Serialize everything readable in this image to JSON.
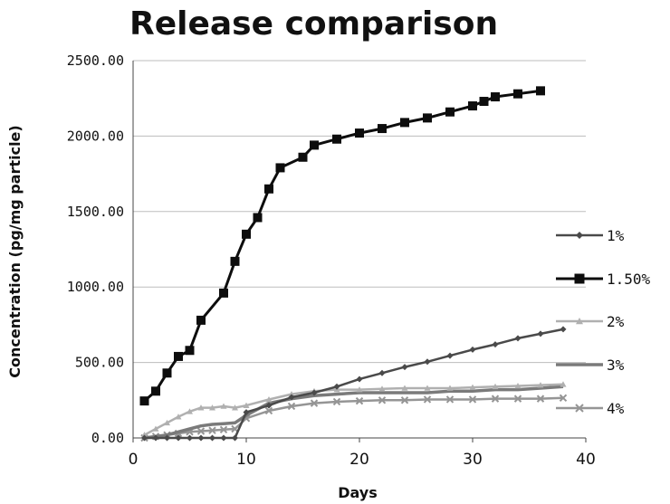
{
  "chart_data": {
    "type": "line",
    "title": "Release comparison",
    "xlabel": "Days",
    "ylabel": "Concentration (pg/mg particle)",
    "xlim": [
      0,
      40
    ],
    "ylim": [
      0,
      2500
    ],
    "xticks": [
      "0",
      "10",
      "20",
      "30",
      "40"
    ],
    "yticks": [
      "0.00",
      "500.00",
      "1000.00",
      "1500.00",
      "2000.00",
      "2500.00"
    ],
    "grid": "horizontal",
    "legend_position": "right",
    "series": [
      {
        "name": "1%",
        "color": "#4a4a4a",
        "marker": "diamond",
        "points": [
          [
            1,
            0
          ],
          [
            2,
            0
          ],
          [
            3,
            0
          ],
          [
            4,
            0
          ],
          [
            5,
            0
          ],
          [
            6,
            0
          ],
          [
            7,
            0
          ],
          [
            8,
            0
          ],
          [
            9,
            0
          ],
          [
            10,
            170
          ],
          [
            12,
            215
          ],
          [
            14,
            270
          ],
          [
            16,
            300
          ],
          [
            18,
            340
          ],
          [
            20,
            390
          ],
          [
            22,
            430
          ],
          [
            24,
            470
          ],
          [
            26,
            505
          ],
          [
            28,
            545
          ],
          [
            30,
            585
          ],
          [
            32,
            620
          ],
          [
            34,
            660
          ],
          [
            36,
            690
          ],
          [
            38,
            720
          ]
        ]
      },
      {
        "name": "1.50%",
        "color": "#0d0d0d",
        "marker": "square",
        "points": [
          [
            1,
            245
          ],
          [
            2,
            310
          ],
          [
            3,
            430
          ],
          [
            4,
            540
          ],
          [
            5,
            580
          ],
          [
            6,
            780
          ],
          [
            8,
            960
          ],
          [
            9,
            1170
          ],
          [
            10,
            1350
          ],
          [
            11,
            1460
          ],
          [
            12,
            1650
          ],
          [
            13,
            1790
          ],
          [
            15,
            1860
          ],
          [
            16,
            1940
          ],
          [
            18,
            1980
          ],
          [
            20,
            2020
          ],
          [
            22,
            2050
          ],
          [
            24,
            2090
          ],
          [
            26,
            2120
          ],
          [
            28,
            2160
          ],
          [
            30,
            2200
          ],
          [
            31,
            2230
          ],
          [
            32,
            2260
          ],
          [
            34,
            2280
          ],
          [
            36,
            2300
          ]
        ]
      },
      {
        "name": "2%",
        "color": "#b0b0b0",
        "marker": "triangle",
        "points": [
          [
            1,
            20
          ],
          [
            2,
            60
          ],
          [
            3,
            100
          ],
          [
            4,
            140
          ],
          [
            5,
            175
          ],
          [
            6,
            200
          ],
          [
            7,
            200
          ],
          [
            8,
            210
          ],
          [
            9,
            200
          ],
          [
            10,
            215
          ],
          [
            12,
            255
          ],
          [
            14,
            290
          ],
          [
            16,
            310
          ],
          [
            18,
            320
          ],
          [
            20,
            320
          ],
          [
            22,
            325
          ],
          [
            24,
            330
          ],
          [
            26,
            330
          ],
          [
            28,
            330
          ],
          [
            30,
            335
          ],
          [
            32,
            340
          ],
          [
            34,
            345
          ],
          [
            36,
            350
          ],
          [
            38,
            355
          ]
        ]
      },
      {
        "name": "3%",
        "color": "#7a7a7a",
        "marker": "none",
        "points": [
          [
            1,
            0
          ],
          [
            2,
            10
          ],
          [
            3,
            20
          ],
          [
            4,
            40
          ],
          [
            5,
            60
          ],
          [
            6,
            80
          ],
          [
            7,
            90
          ],
          [
            8,
            95
          ],
          [
            9,
            100
          ],
          [
            10,
            150
          ],
          [
            12,
            230
          ],
          [
            14,
            260
          ],
          [
            16,
            280
          ],
          [
            18,
            290
          ],
          [
            20,
            300
          ],
          [
            22,
            300
          ],
          [
            24,
            300
          ],
          [
            26,
            300
          ],
          [
            28,
            310
          ],
          [
            30,
            310
          ],
          [
            32,
            320
          ],
          [
            34,
            320
          ],
          [
            36,
            330
          ],
          [
            38,
            340
          ]
        ]
      },
      {
        "name": "4%",
        "color": "#959595",
        "marker": "cross",
        "points": [
          [
            1,
            0
          ],
          [
            2,
            10
          ],
          [
            3,
            20
          ],
          [
            4,
            30
          ],
          [
            5,
            40
          ],
          [
            6,
            45
          ],
          [
            7,
            50
          ],
          [
            8,
            55
          ],
          [
            9,
            60
          ],
          [
            10,
            130
          ],
          [
            12,
            180
          ],
          [
            14,
            210
          ],
          [
            16,
            230
          ],
          [
            18,
            240
          ],
          [
            20,
            245
          ],
          [
            22,
            250
          ],
          [
            24,
            250
          ],
          [
            26,
            255
          ],
          [
            28,
            255
          ],
          [
            30,
            255
          ],
          [
            32,
            260
          ],
          [
            34,
            260
          ],
          [
            36,
            260
          ],
          [
            38,
            265
          ]
        ]
      }
    ]
  }
}
